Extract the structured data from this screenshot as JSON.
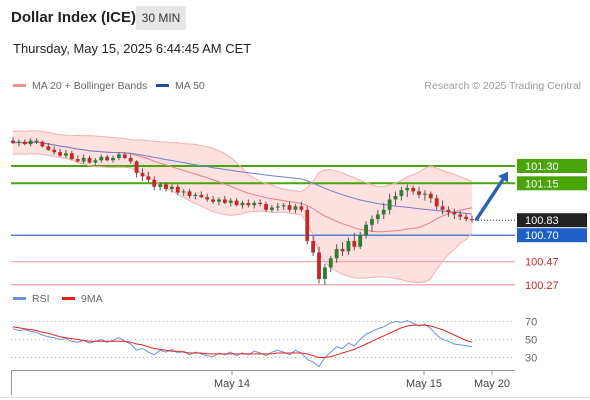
{
  "header": {
    "title": "Dollar Index (ICE)",
    "timeframe": "30 MIN",
    "datetime": "Thursday, May 15, 2025 6:44:45 AM CET"
  },
  "legend": {
    "ma20": "MA 20 + Bollinger Bands",
    "ma50": "MA 50",
    "credit": "Research © 2025 Trading Central"
  },
  "rsi_legend": {
    "rsi": "RSI",
    "ma9": "9MA"
  },
  "colors": {
    "resistance": "#4aa50a",
    "support_primary": "#1f5fc8",
    "support_secondary": "#f2a0a0",
    "support_label": "#c0282d",
    "bollinger_fill": "#fde0e0",
    "ma20": "#e88080",
    "ma50": "#6d80c8",
    "candle_up": "#2e7d32",
    "candle_down": "#c62828",
    "arrow": "#2b62b0",
    "rsi_line": "#6a8fe0",
    "rsi_ma": "#e0241c"
  },
  "chart_data": {
    "type": "candlestick",
    "timeframe": "30 MIN",
    "last_price": 100.83,
    "levels": [
      {
        "label": "101.30",
        "value": 101.3,
        "kind": "resistance"
      },
      {
        "label": "101.15",
        "value": 101.15,
        "kind": "resistance"
      },
      {
        "label": "100.70",
        "value": 100.7,
        "kind": "support"
      },
      {
        "label": "100.47",
        "value": 100.47,
        "kind": "support"
      },
      {
        "label": "100.27",
        "value": 100.27,
        "kind": "support"
      }
    ],
    "last_price_label": "100.83",
    "x_ticks": [
      "May 14",
      "May 15",
      "May 20"
    ],
    "forecast_arrow": {
      "from": 100.83,
      "to": 101.25,
      "direction": "up"
    },
    "ohlc": [
      [
        101.52,
        101.55,
        101.49,
        101.5
      ],
      [
        101.5,
        101.53,
        101.47,
        101.51
      ],
      [
        101.51,
        101.53,
        101.48,
        101.49
      ],
      [
        101.49,
        101.54,
        101.47,
        101.52
      ],
      [
        101.52,
        101.54,
        101.49,
        101.51
      ],
      [
        101.51,
        101.52,
        101.46,
        101.47
      ],
      [
        101.47,
        101.5,
        101.43,
        101.44
      ],
      [
        101.44,
        101.47,
        101.4,
        101.42
      ],
      [
        101.42,
        101.45,
        101.38,
        101.39
      ],
      [
        101.39,
        101.44,
        101.37,
        101.41
      ],
      [
        101.41,
        101.43,
        101.35,
        101.36
      ],
      [
        101.36,
        101.39,
        101.33,
        101.34
      ],
      [
        101.34,
        101.4,
        101.32,
        101.37
      ],
      [
        101.37,
        101.39,
        101.32,
        101.33
      ],
      [
        101.33,
        101.37,
        101.31,
        101.35
      ],
      [
        101.35,
        101.4,
        101.33,
        101.38
      ],
      [
        101.38,
        101.4,
        101.34,
        101.35
      ],
      [
        101.35,
        101.39,
        101.33,
        101.37
      ],
      [
        101.37,
        101.42,
        101.35,
        101.4
      ],
      [
        101.4,
        101.42,
        101.36,
        101.37
      ],
      [
        101.37,
        101.4,
        101.32,
        101.34
      ],
      [
        101.34,
        101.35,
        101.2,
        101.24
      ],
      [
        101.24,
        101.28,
        101.17,
        101.21
      ],
      [
        101.21,
        101.25,
        101.16,
        101.18
      ],
      [
        101.18,
        101.21,
        101.09,
        101.12
      ],
      [
        101.12,
        101.16,
        101.09,
        101.14
      ],
      [
        101.14,
        101.16,
        101.08,
        101.1
      ],
      [
        101.1,
        101.14,
        101.07,
        101.12
      ],
      [
        101.12,
        101.14,
        101.05,
        101.07
      ],
      [
        101.07,
        101.1,
        101.04,
        101.08
      ],
      [
        101.08,
        101.1,
        101.02,
        101.04
      ],
      [
        101.04,
        101.07,
        101.01,
        101.05
      ],
      [
        101.05,
        101.08,
        101.02,
        101.03
      ],
      [
        101.03,
        101.06,
        100.99,
        101.01
      ],
      [
        101.01,
        101.04,
        100.97,
        100.99
      ],
      [
        100.99,
        101.03,
        100.96,
        101.01
      ],
      [
        101.01,
        101.04,
        100.97,
        100.98
      ],
      [
        100.98,
        101.02,
        100.95,
        101.0
      ],
      [
        101.0,
        101.02,
        100.95,
        100.96
      ],
      [
        100.96,
        101.0,
        100.93,
        100.98
      ],
      [
        100.98,
        101.01,
        100.94,
        100.96
      ],
      [
        100.96,
        101.0,
        100.93,
        100.98
      ],
      [
        100.98,
        101.01,
        100.95,
        100.97
      ],
      [
        100.97,
        100.99,
        100.9,
        100.92
      ],
      [
        100.92,
        100.96,
        100.9,
        100.94
      ],
      [
        100.94,
        100.98,
        100.91,
        100.95
      ],
      [
        100.95,
        100.98,
        100.92,
        100.96
      ],
      [
        100.96,
        100.99,
        100.9,
        100.92
      ],
      [
        100.92,
        100.97,
        100.89,
        100.95
      ],
      [
        100.95,
        100.99,
        100.9,
        100.92
      ],
      [
        100.92,
        100.95,
        100.62,
        100.65
      ],
      [
        100.65,
        100.7,
        100.52,
        100.55
      ],
      [
        100.55,
        100.6,
        100.28,
        100.32
      ],
      [
        100.32,
        100.45,
        100.27,
        100.42
      ],
      [
        100.42,
        100.52,
        100.38,
        100.5
      ],
      [
        100.5,
        100.62,
        100.46,
        100.58
      ],
      [
        100.58,
        100.64,
        100.52,
        100.56
      ],
      [
        100.56,
        100.68,
        100.53,
        100.65
      ],
      [
        100.65,
        100.72,
        100.57,
        100.6
      ],
      [
        100.6,
        100.73,
        100.58,
        100.7
      ],
      [
        100.7,
        100.82,
        100.67,
        100.79
      ],
      [
        100.79,
        100.87,
        100.73,
        100.84
      ],
      [
        100.84,
        100.92,
        100.8,
        100.88
      ],
      [
        100.88,
        100.98,
        100.84,
        100.92
      ],
      [
        100.92,
        101.06,
        100.88,
        101.01
      ],
      [
        101.01,
        101.08,
        100.96,
        101.04
      ],
      [
        101.04,
        101.12,
        101.0,
        101.09
      ],
      [
        101.09,
        101.14,
        101.03,
        101.11
      ],
      [
        101.11,
        101.13,
        101.05,
        101.08
      ],
      [
        101.08,
        101.12,
        101.02,
        101.05
      ],
      [
        101.05,
        101.09,
        101.0,
        101.06
      ],
      [
        101.06,
        101.08,
        100.98,
        101.02
      ],
      [
        101.02,
        101.05,
        100.92,
        100.95
      ],
      [
        100.95,
        101.0,
        100.88,
        100.92
      ],
      [
        100.92,
        100.95,
        100.86,
        100.9
      ],
      [
        100.9,
        100.93,
        100.84,
        100.88
      ],
      [
        100.88,
        100.91,
        100.83,
        100.86
      ],
      [
        100.86,
        100.89,
        100.82,
        100.84
      ],
      [
        100.84,
        100.87,
        100.81,
        100.83
      ]
    ],
    "rsi": {
      "levels": [
        70,
        50,
        30
      ],
      "rsi_values": [
        62,
        60,
        61,
        59,
        58,
        55,
        53,
        52,
        50,
        51,
        48,
        47,
        49,
        46,
        48,
        50,
        47,
        49,
        52,
        48,
        45,
        38,
        40,
        36,
        33,
        38,
        36,
        39,
        35,
        37,
        33,
        36,
        34,
        32,
        31,
        35,
        33,
        36,
        32,
        35,
        33,
        37,
        35,
        32,
        36,
        38,
        36,
        33,
        38,
        35,
        28,
        25,
        20,
        30,
        36,
        42,
        40,
        46,
        43,
        50,
        56,
        59,
        62,
        64,
        68,
        70,
        69,
        71,
        68,
        65,
        67,
        62,
        55,
        50,
        48,
        45,
        44,
        43,
        42
      ],
      "ma_values": [
        64,
        63,
        62,
        61,
        60,
        58,
        57,
        55,
        53,
        52,
        51,
        50,
        49,
        48,
        48,
        48,
        48,
        48,
        48,
        48,
        47,
        45,
        44,
        42,
        40,
        39,
        38,
        37,
        37,
        36,
        35,
        35,
        35,
        34,
        34,
        34,
        34,
        34,
        34,
        34,
        34,
        34,
        34,
        34,
        34,
        35,
        35,
        35,
        35,
        35,
        34,
        32,
        30,
        30,
        31,
        33,
        35,
        37,
        39,
        42,
        45,
        48,
        51,
        54,
        57,
        60,
        63,
        65,
        66,
        66,
        66,
        65,
        63,
        61,
        58,
        55,
        52,
        49,
        47
      ]
    }
  }
}
